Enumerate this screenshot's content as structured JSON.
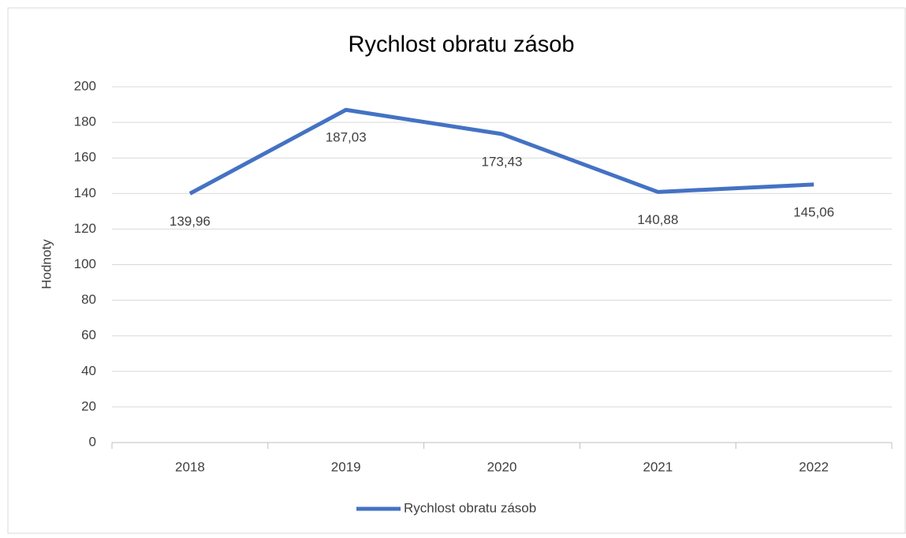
{
  "chart_data": {
    "type": "line",
    "title": "Rychlost obratu zásob",
    "y_label": "Hodnoty",
    "categories": [
      "2018",
      "2019",
      "2020",
      "2021",
      "2022"
    ],
    "series": [
      {
        "name": "Rychlost obratu zásob",
        "color": "#4472c4",
        "values": [
          139.96,
          187.03,
          173.43,
          140.88,
          145.06
        ],
        "value_labels": [
          "139,96",
          "187,03",
          "173,43",
          "140,88",
          "145,06"
        ]
      }
    ],
    "ylim": [
      0,
      200
    ],
    "yticks": [
      0,
      20,
      40,
      60,
      80,
      100,
      120,
      140,
      160,
      180,
      200
    ],
    "grid": true,
    "legend": "bottom"
  }
}
